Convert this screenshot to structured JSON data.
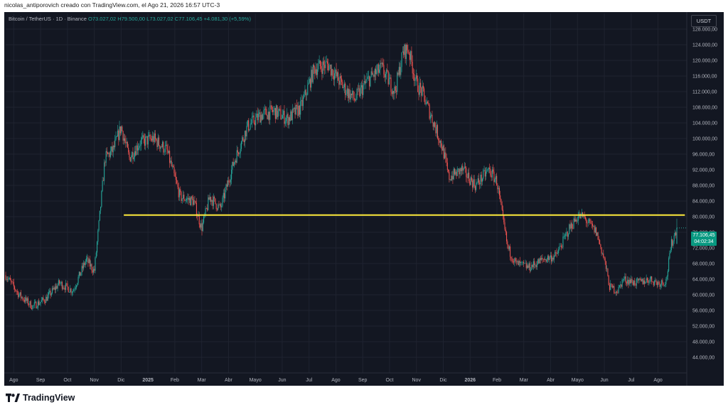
{
  "header": {
    "caption": "nicolas_antiporovich creado con TradingView.com, el Ago 21, 2026 16:57 UTC-3"
  },
  "legend": {
    "symbol": "Bitcoin / TetherUS · 1D · Binance",
    "ohlc": "O73.027,02 H79.500,00 L73.027,02 C77.106,45 +4.081,30 (+5,59%)"
  },
  "currency_button": "USDT",
  "price_label": {
    "price": "77.106,45",
    "countdown": "04:02:34"
  },
  "footer": {
    "brand": "TradingView",
    "logo_icon": "tradingview-logo-icon"
  },
  "colors": {
    "background": "#131722",
    "up": "#26a69a",
    "down": "#ef5350",
    "level_line": "#ffeb3b",
    "grid": "#1f2330",
    "axis_text": "#b2b5be"
  },
  "chart_data": {
    "type": "candlestick",
    "instrument": "Bitcoin / TetherUS",
    "timeframe": "1D",
    "exchange": "Binance",
    "x_tick_labels": [
      "Ago",
      "Sep",
      "Oct",
      "Nov",
      "Dic",
      "2025",
      "Feb",
      "Mar",
      "Abr",
      "Mayo",
      "Jun",
      "Jul",
      "Ago",
      "Sep",
      "Oct",
      "Nov",
      "Dic",
      "2026",
      "Feb",
      "Mar",
      "Abr",
      "Mayo",
      "Jun",
      "Jul",
      "Ago"
    ],
    "y_tick_values": [
      44000,
      48000,
      52000,
      56000,
      60000,
      64000,
      68000,
      72000,
      76000,
      80000,
      84000,
      88000,
      92000,
      96000,
      100000,
      104000,
      108000,
      112000,
      116000,
      120000,
      124000,
      128000
    ],
    "y_tick_labels": [
      "44.000,00",
      "48.000,00",
      "52.000,00",
      "56.000,00",
      "60.000,00",
      "64.000,00",
      "68.000,00",
      "72.000,00",
      "76.000,00",
      "80.000,00",
      "84.000,00",
      "88.000,00",
      "92.000,00",
      "96.000,00",
      "100.000,00",
      "104.000,00",
      "108.000,00",
      "112.000,00",
      "116.000,00",
      "120.000,00",
      "124.000,00",
      "128.000,00"
    ],
    "ylim": [
      40000,
      132000
    ],
    "x_range_months": [
      0,
      25
    ],
    "close_path_months": [
      0,
      0.5,
      1,
      1.5,
      2,
      2.5,
      3,
      3.3,
      3.5,
      3.7,
      4,
      4.3,
      4.6,
      5,
      5.5,
      6,
      6.5,
      7,
      7.3,
      7.6,
      8,
      8.5,
      9,
      9.5,
      10,
      10.5,
      11,
      11.5,
      12,
      12.3,
      12.6,
      13,
      13.5,
      14,
      14.5,
      14.8,
      15,
      15.3,
      15.5,
      16,
      16.3,
      16.5,
      17,
      17.5,
      18,
      18.3,
      18.5,
      18.7,
      19,
      19.5,
      20,
      20.5,
      21,
      21.3,
      21.5,
      22,
      22.3,
      22.5,
      22.8,
      23,
      23.5,
      24,
      24.3,
      24.6,
      24.8,
      25
    ],
    "close_path_values": [
      65000,
      60000,
      57000,
      59000,
      63000,
      61000,
      69000,
      66000,
      80000,
      95000,
      97000,
      103000,
      95000,
      99000,
      100000,
      97000,
      85000,
      84000,
      77000,
      85000,
      82000,
      94000,
      103000,
      106000,
      107000,
      105000,
      108000,
      118000,
      119000,
      116000,
      113000,
      110000,
      115000,
      118000,
      112000,
      122000,
      123000,
      114000,
      112000,
      103000,
      97000,
      90000,
      92000,
      88000,
      92000,
      89000,
      80000,
      72000,
      68000,
      67000,
      69000,
      70000,
      77000,
      80000,
      80000,
      76000,
      69000,
      62000,
      61000,
      64000,
      63000,
      64000,
      63000,
      63500,
      73000,
      77106.45
    ],
    "series": [
      {
        "name": "Bitcoin / TetherUS",
        "last_close": 77106.45,
        "change": 4081.3,
        "change_pct": 5.59
      }
    ],
    "last": {
      "open": 73027.02,
      "high": 79500.0,
      "low": 73027.02,
      "close": 77106.45
    },
    "horizontal_level": {
      "value": 80400,
      "x_start_month": 4.4,
      "x_end_month": 25.3
    }
  }
}
